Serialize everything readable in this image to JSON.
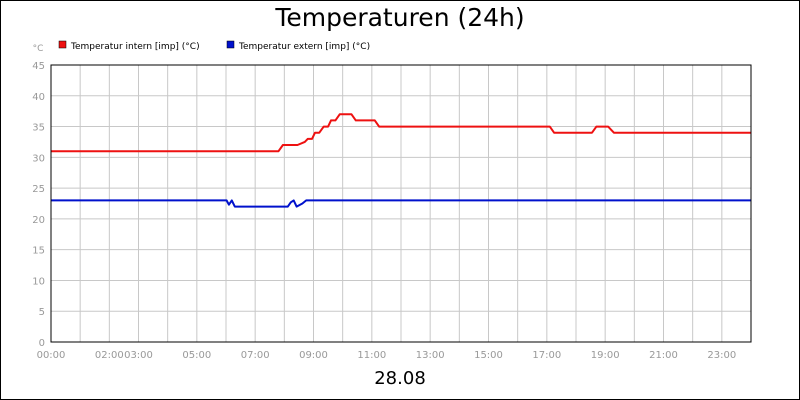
{
  "header": {
    "title": "Temperaturen (24h)"
  },
  "footer": {
    "date": "28.08"
  },
  "chart_data": {
    "type": "line",
    "title": "Temperaturen (24h)",
    "ylabel": "°C",
    "xlabel": "28.08",
    "ylim": [
      0,
      45
    ],
    "xlim": [
      0,
      24
    ],
    "y_ticks": [
      0,
      5,
      10,
      15,
      20,
      25,
      30,
      35,
      40,
      45
    ],
    "x_ticks": [
      {
        "t": 0,
        "label": "00:00"
      },
      {
        "t": 2,
        "label": "02:00"
      },
      {
        "t": 3,
        "label": "03:00"
      },
      {
        "t": 5,
        "label": "05:00"
      },
      {
        "t": 7,
        "label": "07:00"
      },
      {
        "t": 9,
        "label": "09:00"
      },
      {
        "t": 11,
        "label": "11:00"
      },
      {
        "t": 13,
        "label": "13:00"
      },
      {
        "t": 15,
        "label": "15:00"
      },
      {
        "t": 17,
        "label": "17:00"
      },
      {
        "t": 19,
        "label": "19:00"
      },
      {
        "t": 21,
        "label": "21:00"
      },
      {
        "t": 23,
        "label": "23:00"
      }
    ],
    "grid": true,
    "legend_position": "top-left",
    "series": [
      {
        "name": "Temperatur intern [imp] (°C)",
        "color": "#ee1111",
        "points": [
          [
            0,
            31
          ],
          [
            7.8,
            31
          ],
          [
            7.95,
            32
          ],
          [
            8.45,
            32
          ],
          [
            8.7,
            32.5
          ],
          [
            8.8,
            33
          ],
          [
            8.95,
            33
          ],
          [
            9.05,
            34
          ],
          [
            9.2,
            34
          ],
          [
            9.35,
            35
          ],
          [
            9.5,
            35
          ],
          [
            9.6,
            36
          ],
          [
            9.75,
            36
          ],
          [
            9.9,
            37
          ],
          [
            10.3,
            37
          ],
          [
            10.45,
            36
          ],
          [
            11.1,
            36
          ],
          [
            11.25,
            35
          ],
          [
            17.1,
            35
          ],
          [
            17.25,
            34
          ],
          [
            18.55,
            34
          ],
          [
            18.7,
            35
          ],
          [
            19.1,
            35
          ],
          [
            19.3,
            34
          ],
          [
            24,
            34
          ]
        ]
      },
      {
        "name": "Temperatur extern [imp] (°C)",
        "color": "#0011cc",
        "points": [
          [
            0,
            23
          ],
          [
            6.02,
            23
          ],
          [
            6.1,
            22.3
          ],
          [
            6.2,
            23
          ],
          [
            6.3,
            22
          ],
          [
            8.12,
            22
          ],
          [
            8.22,
            22.7
          ],
          [
            8.32,
            23
          ],
          [
            8.42,
            22
          ],
          [
            8.62,
            22.5
          ],
          [
            8.75,
            23
          ],
          [
            24,
            23
          ]
        ]
      }
    ]
  }
}
